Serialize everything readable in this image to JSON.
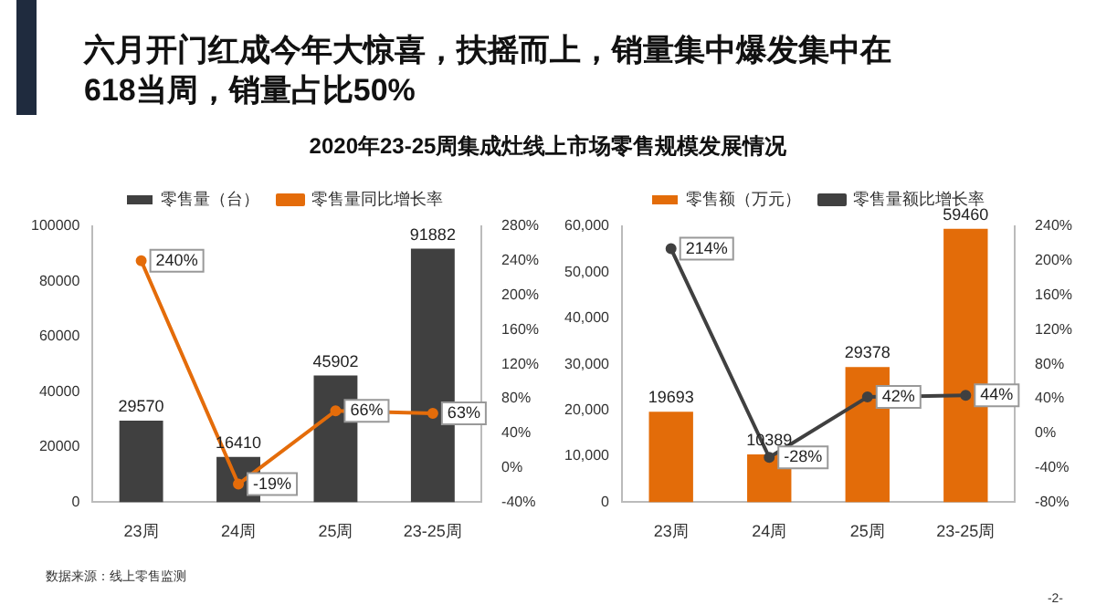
{
  "chart_data": [
    {
      "type": "bar",
      "title": "六月开门红成今年大惊喜，扶摇而上，销量集中爆发集中在618当周，销量占比50%",
      "subtitle": "2020年23-25周集成灶线上市场零售规模发展情况",
      "categories": [
        "23周",
        "24周",
        "25周",
        "23-25周"
      ],
      "series": [
        {
          "name": "零售量（台）",
          "color": "#404040",
          "values": [
            29570,
            16410,
            45902,
            91882
          ],
          "value_labels": [
            "29570",
            "16410",
            "45902",
            "91882"
          ]
        },
        {
          "name": "零售量同比增长率",
          "type": "line",
          "axis": "y2",
          "color": "#e46c0a",
          "marker": "circle",
          "values": [
            240,
            -19,
            66,
            63
          ],
          "value_labels": [
            "240%",
            "-19%",
            "66%",
            "63%"
          ]
        }
      ],
      "ylim": [
        0,
        100000
      ],
      "yticks": [
        0,
        20000,
        40000,
        60000,
        80000,
        100000
      ],
      "y2lim": [
        -40,
        280
      ],
      "y2ticks": [
        {
          "value": -40,
          "label": "-40%"
        },
        {
          "value": 0,
          "label": "0%"
        },
        {
          "value": 40,
          "label": "40%"
        },
        {
          "value": 80,
          "label": "80%"
        },
        {
          "value": 120,
          "label": "120%"
        },
        {
          "value": 160,
          "label": "160%"
        },
        {
          "value": 200,
          "label": "200%"
        },
        {
          "value": 240,
          "label": "240%"
        },
        {
          "value": 280,
          "label": "280%"
        }
      ],
      "legend": "top",
      "grid": false
    },
    {
      "type": "bar",
      "categories": [
        "23周",
        "24周",
        "25周",
        "23-25周"
      ],
      "series": [
        {
          "name": "零售额（万元）",
          "color": "#e36c09",
          "values": [
            19693,
            10389,
            29378,
            59460
          ],
          "value_labels": [
            "19693",
            "10389",
            "29378",
            "59460"
          ]
        },
        {
          "name": "零售量额比增长率",
          "type": "line",
          "axis": "y2",
          "color": "#404040",
          "marker": "circle",
          "values": [
            214,
            -28,
            42,
            44
          ],
          "value_labels": [
            "214%",
            "-28%",
            "42%",
            "44%"
          ]
        }
      ],
      "ylim": [
        0,
        60000
      ],
      "yticks": [
        0,
        {
          "value": 10000,
          "label": "10,000"
        },
        {
          "value": 20000,
          "label": "20,000"
        },
        {
          "value": 30000,
          "label": "30,000"
        },
        {
          "value": 40000,
          "label": "40,000"
        },
        {
          "value": 50000,
          "label": "50,000"
        },
        {
          "value": 60000,
          "label": "60,000"
        }
      ],
      "y2lim": [
        -80,
        240
      ],
      "y2ticks": [
        {
          "value": -80,
          "label": "-80%"
        },
        {
          "value": -40,
          "label": "-40%"
        },
        {
          "value": 0,
          "label": "0%"
        },
        {
          "value": 40,
          "label": "40%"
        },
        {
          "value": 80,
          "label": "80%"
        },
        {
          "value": 120,
          "label": "120%"
        },
        {
          "value": 160,
          "label": "160%"
        },
        {
          "value": 200,
          "label": "200%"
        },
        {
          "value": 240,
          "label": "240%"
        }
      ],
      "legend": "top",
      "grid": false,
      "annotations": [
        "数据来源：线上零售监测",
        "-2-"
      ]
    }
  ]
}
